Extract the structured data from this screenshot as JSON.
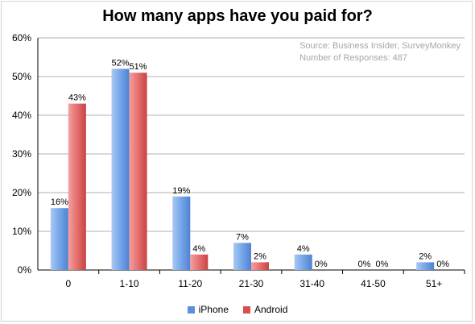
{
  "chart_data": {
    "type": "bar",
    "title": "How many apps have you paid for?",
    "source_lines": [
      "Source: Business Insider, SurveyMonkey",
      "Number of Responses: 487"
    ],
    "categories": [
      "0",
      "1-10",
      "11-20",
      "21-30",
      "31-40",
      "41-50",
      "51+"
    ],
    "series": [
      {
        "name": "iPhone",
        "values": [
          16,
          52,
          19,
          7,
          4,
          0,
          2
        ],
        "labels": [
          "16%",
          "52%",
          "19%",
          "7%",
          "4%",
          "0%",
          "2%"
        ],
        "color": "#5b8fd9"
      },
      {
        "name": "Android",
        "values": [
          43,
          51,
          4,
          2,
          0,
          0,
          0
        ],
        "labels": [
          "43%",
          "51%",
          "4%",
          "2%",
          "0%",
          "0%",
          "0%"
        ],
        "color": "#d94f4f"
      }
    ],
    "ylim": [
      0,
      60
    ],
    "yticks": [
      "0%",
      "10%",
      "20%",
      "30%",
      "40%",
      "50%",
      "60%"
    ],
    "grid": true,
    "legend_position": "bottom"
  }
}
